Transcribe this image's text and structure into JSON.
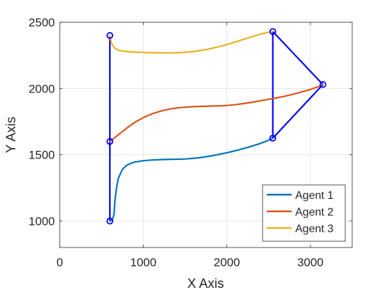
{
  "chart_data": {
    "type": "line",
    "title": "",
    "xlabel": "X Axis",
    "ylabel": "Y Axis",
    "xlim": [
      0,
      3500
    ],
    "ylim": [
      800,
      2500
    ],
    "xticks": [
      0,
      1000,
      2000,
      3000
    ],
    "yticks": [
      1000,
      1500,
      2000,
      2500
    ],
    "grid": true,
    "legend_position": "bottom-right",
    "series": [
      {
        "name": "Agent 1",
        "color": "#0072BD",
        "x": [
          600,
          630,
          650,
          660,
          680,
          700,
          750,
          800,
          850,
          900,
          1000,
          1100,
          1200,
          1300,
          1400,
          1500,
          1600,
          1700,
          1800,
          1900,
          2000,
          2100,
          2200,
          2300,
          2400,
          2500,
          2550
        ],
        "y": [
          1000,
          1010,
          1050,
          1150,
          1250,
          1320,
          1390,
          1420,
          1435,
          1445,
          1455,
          1460,
          1463,
          1465,
          1466,
          1468,
          1473,
          1480,
          1490,
          1502,
          1515,
          1530,
          1547,
          1565,
          1585,
          1610,
          1625
        ]
      },
      {
        "name": "Agent 2",
        "color": "#D95319",
        "x": [
          600,
          700,
          800,
          900,
          1000,
          1100,
          1200,
          1300,
          1400,
          1500,
          1600,
          1700,
          1800,
          1900,
          2000,
          2100,
          2200,
          2300,
          2400,
          2500,
          2600,
          2700,
          2800,
          2900,
          3000,
          3100,
          3150
        ],
        "y": [
          1600,
          1650,
          1700,
          1745,
          1780,
          1808,
          1828,
          1843,
          1853,
          1859,
          1863,
          1865,
          1867,
          1869,
          1872,
          1878,
          1886,
          1896,
          1907,
          1918,
          1930,
          1943,
          1958,
          1975,
          1993,
          2015,
          2030
        ]
      },
      {
        "name": "Agent 3",
        "color": "#EDB120",
        "x": [
          600,
          620,
          650,
          700,
          750,
          800,
          900,
          1000,
          1100,
          1200,
          1300,
          1400,
          1500,
          1600,
          1700,
          1800,
          1900,
          2000,
          2100,
          2200,
          2300,
          2400,
          2500,
          2550
        ],
        "y": [
          2400,
          2340,
          2310,
          2290,
          2283,
          2279,
          2275,
          2272,
          2270,
          2269,
          2269,
          2270,
          2273,
          2279,
          2288,
          2300,
          2315,
          2332,
          2351,
          2371,
          2391,
          2410,
          2425,
          2430
        ]
      }
    ],
    "formation_links": {
      "color": "#0000FF",
      "segments": [
        [
          [
            600,
            1000
          ],
          [
            600,
            1600
          ]
        ],
        [
          [
            600,
            1600
          ],
          [
            600,
            2400
          ]
        ],
        [
          [
            2550,
            1625
          ],
          [
            2550,
            2430
          ]
        ],
        [
          [
            2550,
            2430
          ],
          [
            3150,
            2030
          ]
        ],
        [
          [
            3150,
            2030
          ],
          [
            2550,
            1625
          ]
        ]
      ],
      "markers": [
        [
          600,
          1000
        ],
        [
          600,
          1600
        ],
        [
          600,
          2400
        ],
        [
          2550,
          1625
        ],
        [
          2550,
          2430
        ],
        [
          3150,
          2030
        ]
      ]
    }
  }
}
